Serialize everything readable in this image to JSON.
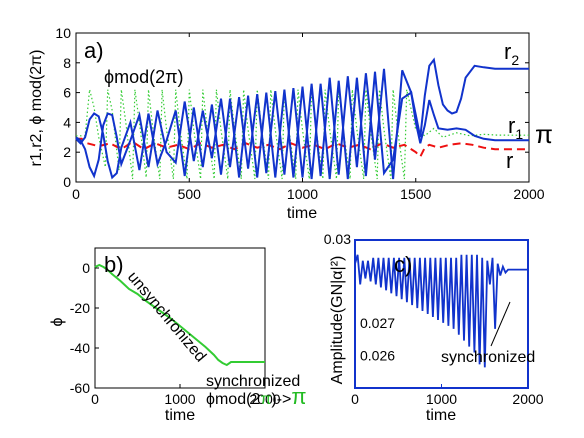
{
  "colors": {
    "r1": "#1133cc",
    "r2": "#1133cc",
    "r": "#ee1111",
    "phi_mod": "#33cc33",
    "phi": "#33cc33",
    "panel_c_frame": "#1133cc",
    "pi": "#22bb22"
  },
  "chart_data": [
    {
      "type": "line",
      "panel_label": "a)",
      "xlabel": "time",
      "ylabel": "r1,r2, ϕ mod(2π)",
      "xlim": [
        0,
        2000
      ],
      "ylim": [
        0,
        10
      ],
      "xticks": [
        "0",
        "500",
        "1000",
        "1500",
        "2000"
      ],
      "yticks": [
        "0",
        "2",
        "4",
        "6",
        "8",
        "10"
      ],
      "annotations": {
        "r2": "r",
        "r2_sub": "2",
        "r1": "r",
        "r1_sub": "1",
        "r": "r",
        "pi": "π",
        "phi_mod": "ϕmod(2π)"
      },
      "series": [
        {
          "key": "r2",
          "x": [
            0,
            20,
            40,
            60,
            80,
            100,
            120,
            140,
            160,
            180,
            200,
            240,
            280,
            320,
            360,
            400,
            440,
            480,
            520,
            560,
            600,
            640,
            680,
            720,
            760,
            800,
            840,
            880,
            920,
            960,
            1000,
            1040,
            1080,
            1120,
            1160,
            1200,
            1240,
            1280,
            1320,
            1360,
            1400,
            1440,
            1480,
            1500,
            1520,
            1540,
            1560,
            1580,
            1600,
            1620,
            1640,
            1660,
            1680,
            1700,
            1720,
            1760,
            1800,
            1850,
            1900,
            1950,
            2000
          ],
          "y": [
            3.0,
            2.8,
            2.2,
            1.0,
            0.4,
            1.5,
            3.8,
            4.6,
            4.5,
            3.0,
            1.2,
            2.8,
            4.5,
            1.0,
            4.8,
            2.0,
            1.3,
            5.4,
            1.4,
            4.8,
            1.6,
            5.6,
            1.0,
            5.7,
            0.9,
            5.9,
            0.6,
            6.1,
            0.5,
            6.3,
            0.3,
            6.6,
            0.4,
            7.0,
            0.5,
            7.1,
            1.0,
            7.3,
            1.5,
            7.6,
            0.2,
            7.5,
            6.0,
            4.5,
            3.0,
            5.8,
            7.8,
            8.2,
            6.5,
            5.2,
            4.8,
            4.6,
            4.7,
            5.6,
            7.0,
            7.8,
            7.7,
            7.6,
            7.6,
            7.6,
            7.6
          ]
        },
        {
          "key": "r1",
          "x": [
            0,
            20,
            40,
            60,
            80,
            100,
            120,
            140,
            160,
            180,
            200,
            240,
            280,
            320,
            360,
            400,
            440,
            480,
            520,
            560,
            600,
            640,
            680,
            720,
            760,
            800,
            840,
            880,
            920,
            960,
            1000,
            1040,
            1080,
            1120,
            1160,
            1200,
            1240,
            1280,
            1320,
            1360,
            1400,
            1440,
            1480,
            1500,
            1520,
            1540,
            1560,
            1580,
            1600,
            1640,
            1680,
            1720,
            1760,
            1800,
            1850,
            1900,
            1950,
            2000
          ],
          "y": [
            2.9,
            2.6,
            3.0,
            4.2,
            4.6,
            4.4,
            3.2,
            1.4,
            0.3,
            0.6,
            2.3,
            4.0,
            0.8,
            4.6,
            1.2,
            2.8,
            4.8,
            0.4,
            5.0,
            1.0,
            5.2,
            0.5,
            5.6,
            0.3,
            5.8,
            0.3,
            6.0,
            0.3,
            6.2,
            0.3,
            6.4,
            0.2,
            6.6,
            0.2,
            6.8,
            0.2,
            7.0,
            0.4,
            7.4,
            0.6,
            1.5,
            5.6,
            6.0,
            4.0,
            2.6,
            3.8,
            5.5,
            4.5,
            3.6,
            3.5,
            3.6,
            3.5,
            3.1,
            2.9,
            2.8,
            2.8,
            2.8,
            2.8
          ]
        },
        {
          "key": "r",
          "dashed": true,
          "x": [
            0,
            25,
            50,
            100,
            150,
            200,
            250,
            300,
            350,
            400,
            450,
            500,
            550,
            600,
            650,
            700,
            750,
            800,
            850,
            900,
            950,
            1000,
            1050,
            1100,
            1150,
            1200,
            1250,
            1300,
            1350,
            1400,
            1450,
            1500,
            1520,
            1540,
            1560,
            1580,
            1600,
            1650,
            1700,
            1750,
            1800,
            1850,
            1900,
            1950,
            2000
          ],
          "y": [
            2.9,
            2.9,
            2.6,
            2.4,
            2.6,
            2.2,
            2.7,
            2.2,
            2.6,
            2.3,
            2.5,
            2.2,
            2.6,
            2.3,
            2.5,
            2.2,
            2.6,
            2.3,
            2.5,
            2.2,
            2.6,
            2.3,
            2.5,
            2.2,
            2.6,
            2.3,
            2.5,
            2.2,
            2.6,
            2.3,
            2.5,
            2.0,
            1.7,
            2.3,
            2.5,
            2.4,
            2.3,
            2.5,
            2.6,
            2.5,
            2.3,
            2.2,
            2.2,
            2.2,
            2.2
          ]
        },
        {
          "key": "phi_mod",
          "dotted": true,
          "x": [
            0,
            40,
            60,
            80,
            100,
            130,
            140,
            160,
            190,
            200,
            220,
            250,
            260,
            280,
            310,
            320,
            340,
            370,
            380,
            400,
            430,
            440,
            460,
            490,
            500,
            520,
            550,
            560,
            580,
            610,
            620,
            640,
            670,
            680,
            700,
            730,
            740,
            760,
            790,
            800,
            820,
            850,
            860,
            880,
            910,
            920,
            940,
            970,
            980,
            1000,
            1030,
            1040,
            1060,
            1090,
            1100,
            1120,
            1150,
            1160,
            1180,
            1210,
            1220,
            1240,
            1270,
            1280,
            1300,
            1330,
            1340,
            1360,
            1390,
            1400,
            1420,
            1450,
            1460,
            1500,
            1540,
            1580,
            1620,
            1680,
            1740,
            1800,
            1860,
            1920,
            1980,
            2000
          ],
          "y": [
            3.1,
            3.1,
            6.2,
            5.0,
            3.0,
            1.0,
            6.2,
            4.8,
            0.8,
            6.2,
            4.0,
            0.2,
            6.2,
            4.0,
            0.3,
            6.2,
            3.5,
            0.2,
            6.2,
            3.5,
            0.2,
            6.2,
            3.5,
            0.2,
            6.2,
            3.5,
            0.2,
            6.2,
            3.5,
            0.2,
            6.2,
            3.5,
            0.2,
            6.2,
            3.5,
            0.2,
            6.2,
            3.5,
            0.2,
            6.2,
            3.5,
            0.2,
            6.2,
            3.5,
            0.2,
            6.2,
            3.5,
            0.2,
            6.2,
            3.5,
            0.2,
            6.2,
            3.5,
            0.2,
            6.2,
            3.5,
            0.2,
            6.2,
            3.5,
            0.2,
            6.2,
            3.5,
            0.2,
            6.2,
            3.5,
            0.2,
            6.2,
            3.5,
            0.2,
            6.2,
            3.5,
            0.2,
            6.2,
            3.5,
            3.1,
            3.6,
            3.0,
            3.3,
            3.1,
            3.2,
            3.15,
            3.14,
            3.14,
            3.14
          ]
        }
      ]
    },
    {
      "type": "line",
      "panel_label": "b)",
      "xlabel": "time",
      "ylabel": "ϕ",
      "xlim": [
        0,
        2000
      ],
      "ylim": [
        -60,
        10
      ],
      "xticks": [
        "0",
        "1000",
        "2000"
      ],
      "yticks": [
        "0",
        "-20",
        "-40",
        "-60"
      ],
      "annotations": {
        "unsynchronized": "unsynchronized",
        "synchronized": "synchronized",
        "phi_mod_label": "ϕmod(2",
        "pi_inner": "π",
        "close_arrow": ")->",
        "pi_big": "π"
      },
      "series": [
        {
          "key": "phi",
          "x": [
            0,
            50,
            100,
            150,
            200,
            300,
            400,
            500,
            600,
            700,
            800,
            900,
            1000,
            1100,
            1200,
            1300,
            1400,
            1450,
            1500,
            1550,
            1600,
            1700,
            1800,
            1900,
            2000
          ],
          "y": [
            0.5,
            1.5,
            0.5,
            -1.0,
            -3.0,
            -6.5,
            -10.5,
            -13.0,
            -16.5,
            -19.5,
            -22.5,
            -25.5,
            -29.0,
            -32.5,
            -36.0,
            -39.5,
            -43.5,
            -46.0,
            -47.5,
            -48.5,
            -47.0,
            -47.0,
            -47.0,
            -47.0,
            -47.0
          ]
        }
      ]
    },
    {
      "type": "line",
      "panel_label": "c)",
      "xlabel": "time",
      "ylabel": "Amplitude(GN|α|²)",
      "xlim": [
        0,
        2000
      ],
      "ylim": [
        0.025,
        0.03
      ],
      "xticks": [
        "0",
        "1000",
        "2000"
      ],
      "yticks": [
        "0.03",
        "0.027",
        "0.026"
      ],
      "annotations": {
        "synchronized": "synchronized"
      },
      "series": [
        {
          "key": "amplitude",
          "x": [
            0,
            30,
            60,
            90,
            120,
            150,
            180,
            210,
            240,
            270,
            300,
            330,
            360,
            390,
            420,
            450,
            480,
            510,
            540,
            570,
            600,
            630,
            660,
            690,
            720,
            750,
            780,
            810,
            840,
            870,
            900,
            930,
            960,
            990,
            1020,
            1050,
            1080,
            1110,
            1140,
            1170,
            1200,
            1230,
            1260,
            1290,
            1320,
            1350,
            1380,
            1410,
            1440,
            1470,
            1500,
            1530,
            1560,
            1590,
            1620,
            1650,
            1680,
            1710,
            1740,
            1770,
            1800,
            1850,
            1900,
            1950,
            2000
          ],
          "y": [
            0.0292,
            0.0295,
            0.0285,
            0.0293,
            0.0287,
            0.0293,
            0.0286,
            0.0294,
            0.0285,
            0.0294,
            0.0284,
            0.0294,
            0.0283,
            0.0294,
            0.0282,
            0.0294,
            0.0281,
            0.0294,
            0.028,
            0.0294,
            0.0279,
            0.0294,
            0.0278,
            0.0294,
            0.0277,
            0.0294,
            0.0276,
            0.0294,
            0.0275,
            0.0294,
            0.0274,
            0.0294,
            0.0273,
            0.0294,
            0.0272,
            0.0294,
            0.0271,
            0.0294,
            0.027,
            0.0294,
            0.0268,
            0.0295,
            0.0266,
            0.0295,
            0.0264,
            0.0295,
            0.0262,
            0.0295,
            0.0258,
            0.0294,
            0.0257,
            0.0293,
            0.0285,
            0.0294,
            0.027,
            0.0292,
            0.0288,
            0.0291,
            0.0289,
            0.029,
            0.029,
            0.029,
            0.029,
            0.029,
            0.029
          ]
        }
      ]
    }
  ]
}
